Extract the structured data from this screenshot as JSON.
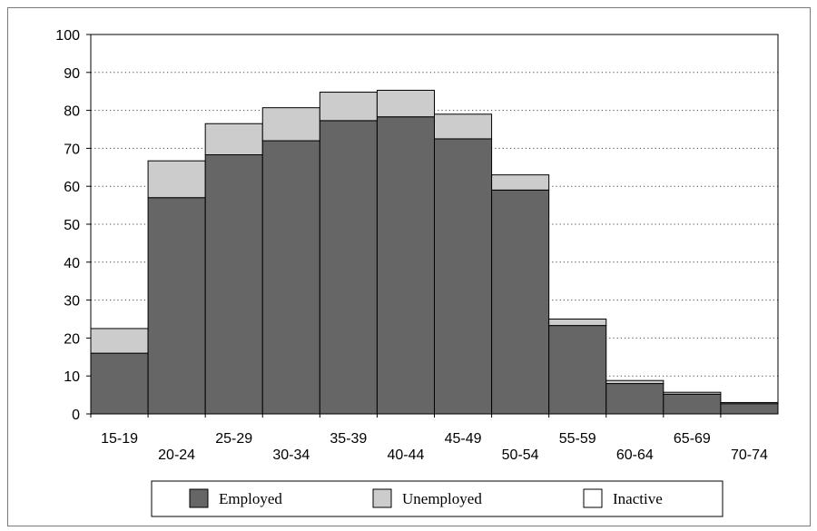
{
  "chart_data": {
    "type": "bar",
    "stacked": true,
    "categories": [
      "15-19",
      "20-24",
      "25-29",
      "30-34",
      "35-39",
      "40-44",
      "45-49",
      "50-54",
      "55-59",
      "60-64",
      "65-69",
      "70-74"
    ],
    "series": [
      {
        "name": "Employed",
        "color": "#666666",
        "values": [
          16,
          57,
          68.3,
          72,
          77.3,
          78.3,
          72.5,
          59,
          23.3,
          8,
          5.2,
          2.7
        ]
      },
      {
        "name": "Unemployed",
        "color": "#cccccc",
        "values": [
          6.5,
          9.7,
          8.2,
          8.7,
          7.5,
          7.0,
          6.5,
          4,
          1.7,
          0.8,
          0.5,
          0.3
        ]
      },
      {
        "name": "Inactive",
        "color": "#ffffff",
        "values": [
          0,
          0,
          0,
          0,
          0,
          0,
          0,
          0,
          0,
          0,
          0,
          0
        ]
      }
    ],
    "title": "",
    "xlabel": "",
    "ylabel": "",
    "ylim": [
      0,
      100
    ],
    "yticks": [
      "0",
      "10",
      "20",
      "30",
      "40",
      "50",
      "60",
      "70",
      "80",
      "90",
      "100"
    ],
    "grid": "horizontal-dotted",
    "legend_placement": "bottom"
  }
}
